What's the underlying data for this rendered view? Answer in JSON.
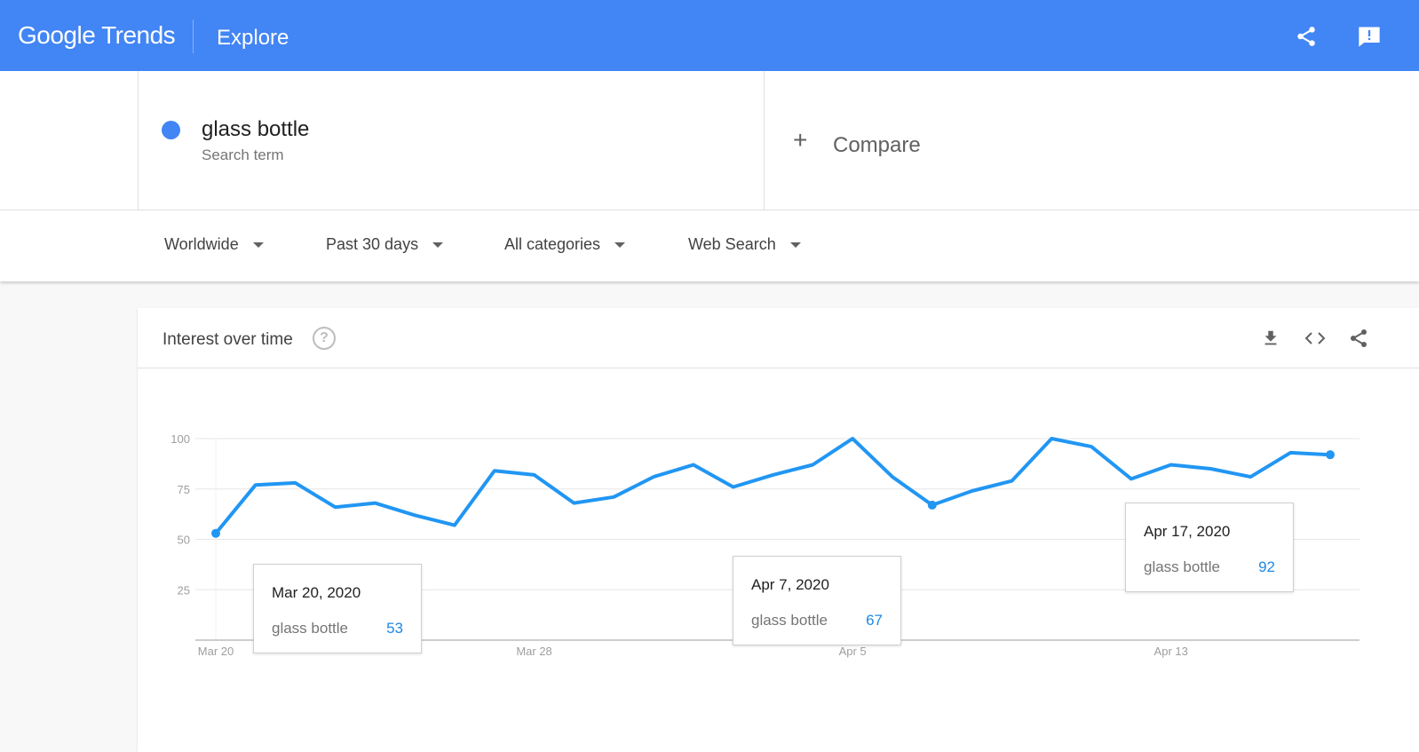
{
  "header": {
    "logo": "Google Trends",
    "page_name": "Explore",
    "share_icon": "share-icon",
    "feedback_icon": "feedback-icon"
  },
  "search": {
    "term": "glass bottle",
    "term_type": "Search term",
    "term_color": "#4285f4",
    "compare_label": "Compare"
  },
  "filters": {
    "region": "Worldwide",
    "time_range": "Past 30 days",
    "category": "All categories",
    "search_type": "Web Search"
  },
  "card": {
    "title": "Interest over time",
    "help_glyph": "?",
    "icons": [
      "download-icon",
      "embed-icon",
      "share-icon"
    ]
  },
  "chart_data": {
    "type": "line",
    "series": [
      {
        "name": "glass bottle",
        "color": "#2196f3",
        "values": [
          53,
          77,
          78,
          66,
          68,
          62,
          57,
          84,
          82,
          68,
          71,
          81,
          87,
          76,
          82,
          87,
          100,
          81,
          67,
          74,
          79,
          100,
          96,
          80,
          87,
          85,
          81,
          93,
          92
        ]
      }
    ],
    "x_start": "Mar 20",
    "x_tick_labels": [
      "Mar 20",
      "Mar 28",
      "Apr 5",
      "Apr 13"
    ],
    "x_tick_indices": [
      0,
      8,
      16,
      24
    ],
    "y_ticks": [
      25,
      50,
      75,
      100
    ],
    "ylim": [
      0,
      100
    ],
    "grid": true,
    "highlighted_indices": [
      0,
      18,
      28
    ]
  },
  "tooltips": [
    {
      "date": "Mar 20, 2020",
      "term": "glass bottle",
      "value": "53"
    },
    {
      "date": "Apr 7, 2020",
      "term": "glass bottle",
      "value": "67"
    },
    {
      "date": "Apr 17, 2020",
      "term": "glass bottle",
      "value": "92"
    }
  ]
}
